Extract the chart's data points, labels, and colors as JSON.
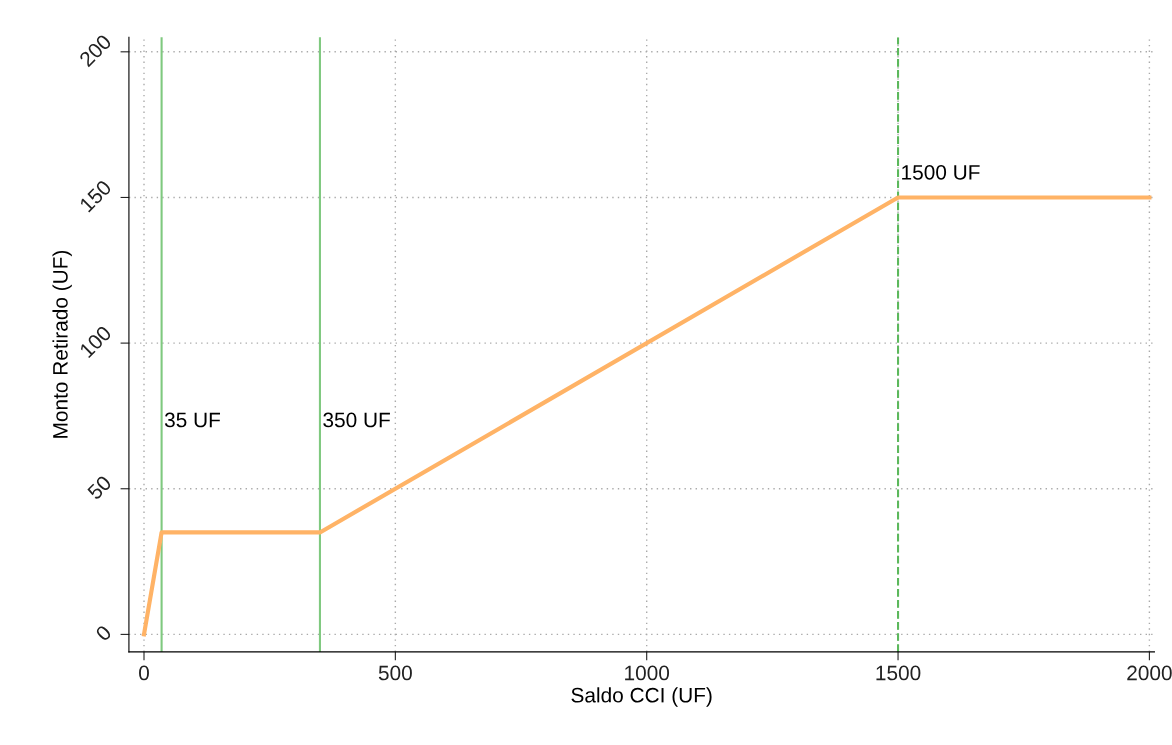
{
  "chart_data": {
    "type": "line",
    "xlabel": "Saldo CCI (UF)",
    "ylabel": "Monto Retirado (UF)",
    "x": [
      0,
      35,
      350,
      1500,
      2000
    ],
    "series": [
      {
        "color": "#ffb366",
        "values": [
          0,
          35,
          35,
          150,
          150
        ]
      }
    ],
    "xlim": [
      -30,
      2010
    ],
    "ylim": [
      -6,
      205
    ],
    "xticks": [
      0,
      500,
      1000,
      1500,
      2000
    ],
    "yticks": [
      0,
      50,
      100,
      150,
      200
    ],
    "grid": true,
    "line_style": "solid",
    "marker": "none",
    "ref_lines": [
      {
        "axis": "x",
        "value": 35,
        "color": "#7fc97f"
      },
      {
        "axis": "x",
        "value": 350,
        "color": "#7fc97f"
      },
      {
        "axis": "x",
        "value": 1500,
        "color": "#5cb85c",
        "line_style": "dashed"
      }
    ],
    "annotations": [
      {
        "text": "35 UF",
        "x": 35,
        "y": 73
      },
      {
        "text": "350 UF",
        "x": 350,
        "y": 73
      },
      {
        "text": "1500 UF",
        "x": 1500,
        "y": 158
      }
    ]
  }
}
